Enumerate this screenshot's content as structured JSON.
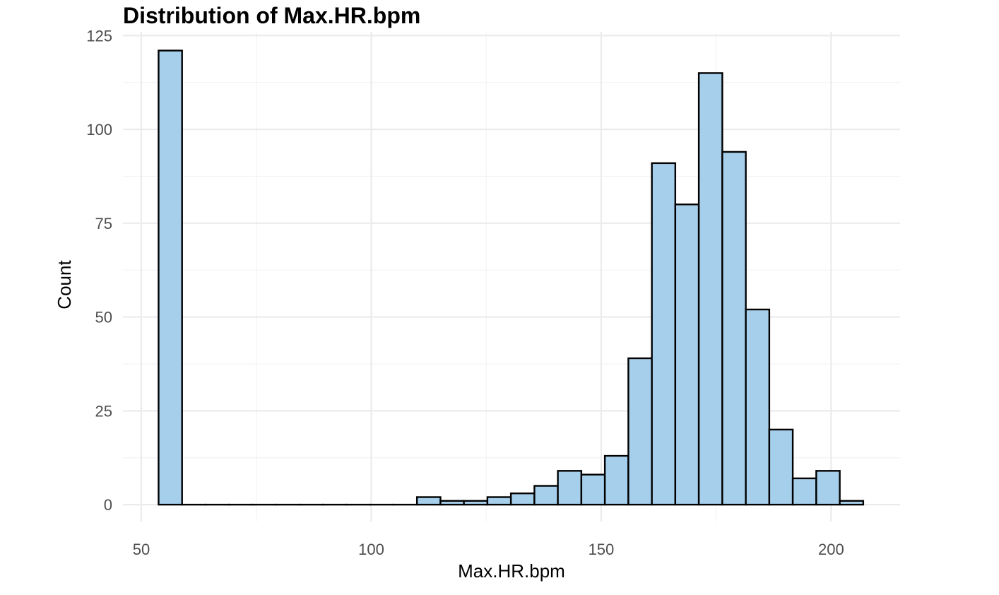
{
  "chart_data": {
    "type": "bar",
    "title": "Distribution of Max.HR.bpm",
    "xlabel": "Max.HR.bpm",
    "ylabel": "Count",
    "xlim": [
      46,
      215
    ],
    "ylim": [
      -4.5,
      126
    ],
    "xticks": [
      50,
      100,
      150,
      200
    ],
    "yticks": [
      0,
      25,
      50,
      75,
      100,
      125
    ],
    "grid": true,
    "bar_color": "#a6cfec",
    "bar_edge_color": "#000000",
    "bins": [
      {
        "start": 53.75,
        "end": 58.86,
        "count": 121
      },
      {
        "start": 58.86,
        "end": 63.97,
        "count": 0
      },
      {
        "start": 63.97,
        "end": 69.07,
        "count": 0
      },
      {
        "start": 69.07,
        "end": 74.18,
        "count": 0
      },
      {
        "start": 74.18,
        "end": 79.29,
        "count": 0
      },
      {
        "start": 79.29,
        "end": 84.4,
        "count": 0
      },
      {
        "start": 84.4,
        "end": 89.51,
        "count": 0
      },
      {
        "start": 89.51,
        "end": 94.61,
        "count": 0
      },
      {
        "start": 94.61,
        "end": 99.72,
        "count": 0
      },
      {
        "start": 99.72,
        "end": 104.83,
        "count": 0
      },
      {
        "start": 104.83,
        "end": 109.94,
        "count": 0
      },
      {
        "start": 109.94,
        "end": 115.05,
        "count": 2
      },
      {
        "start": 115.05,
        "end": 120.15,
        "count": 1
      },
      {
        "start": 120.15,
        "end": 125.26,
        "count": 1
      },
      {
        "start": 125.26,
        "end": 130.37,
        "count": 2
      },
      {
        "start": 130.37,
        "end": 135.48,
        "count": 3
      },
      {
        "start": 135.48,
        "end": 140.58,
        "count": 5
      },
      {
        "start": 140.58,
        "end": 145.69,
        "count": 9
      },
      {
        "start": 145.69,
        "end": 150.8,
        "count": 8
      },
      {
        "start": 150.8,
        "end": 155.91,
        "count": 13
      },
      {
        "start": 155.91,
        "end": 161.02,
        "count": 39
      },
      {
        "start": 161.02,
        "end": 166.12,
        "count": 91
      },
      {
        "start": 166.12,
        "end": 171.23,
        "count": 80
      },
      {
        "start": 171.23,
        "end": 176.34,
        "count": 115
      },
      {
        "start": 176.34,
        "end": 181.45,
        "count": 94
      },
      {
        "start": 181.45,
        "end": 186.56,
        "count": 52
      },
      {
        "start": 186.56,
        "end": 191.66,
        "count": 20
      },
      {
        "start": 191.66,
        "end": 196.77,
        "count": 7
      },
      {
        "start": 196.77,
        "end": 201.88,
        "count": 9
      },
      {
        "start": 201.88,
        "end": 206.99,
        "count": 1
      }
    ]
  }
}
